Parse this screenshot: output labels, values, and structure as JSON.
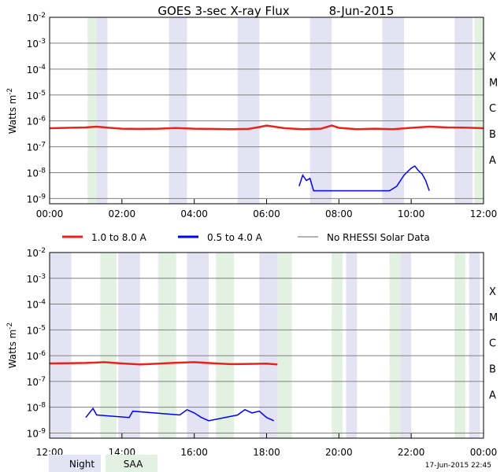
{
  "title": "GOES 3-sec X-ray Flux",
  "date": "8-Jun-2015",
  "ylabel": "Watts m",
  "ylabel_sup": "-2",
  "class_labels": [
    "A",
    "B",
    "C",
    "M",
    "X"
  ],
  "legend": {
    "long": "1.0 to 8.0 A",
    "short": "0.5 to 4.0 A",
    "nodata": "No RHESSI Solar Data"
  },
  "shading_legend": {
    "night": "Night",
    "saa": "SAA"
  },
  "timestamp": "17-Jun-2015 22:45",
  "colors": {
    "long": "#e8231c",
    "short": "#0000ff",
    "nodata": "#999999",
    "night": "#e3e3f3",
    "saa": "#e3f1e3"
  },
  "chart_data": [
    {
      "type": "line",
      "panel": "top",
      "x_unit": "hours UTC",
      "xlim": [
        0,
        12
      ],
      "x_ticks": [
        "00:00",
        "02:00",
        "04:00",
        "06:00",
        "08:00",
        "10:00",
        "12:00"
      ],
      "ylim_log10": [
        -9.2,
        -2
      ],
      "y_ticks": [
        "10-9",
        "10-8",
        "10-7",
        "10-6",
        "10-5",
        "10-4",
        "10-3",
        "10-2"
      ],
      "y_scale": "log",
      "night": [
        [
          1.3,
          1.6
        ],
        [
          3.3,
          3.8
        ],
        [
          5.2,
          5.8
        ],
        [
          7.2,
          7.8
        ],
        [
          9.2,
          9.8
        ],
        [
          11.2,
          11.7
        ]
      ],
      "saa": [
        [
          1.05,
          1.3
        ],
        [
          11.75,
          12.0
        ]
      ],
      "series": [
        {
          "name": "1.0 to 8.0 A",
          "key": "long",
          "x": [
            0,
            0.5,
            1.0,
            1.3,
            1.6,
            2.0,
            2.5,
            3.0,
            3.5,
            4.0,
            4.5,
            5.0,
            5.5,
            5.8,
            6.0,
            6.5,
            7.0,
            7.5,
            7.8,
            8.0,
            8.5,
            9.0,
            9.5,
            10.0,
            10.5,
            11.0,
            11.5,
            12.0
          ],
          "y": [
            5.2e-07,
            5.4e-07,
            5.6e-07,
            6e-07,
            5.5e-07,
            5e-07,
            4.9e-07,
            5e-07,
            5.3e-07,
            5e-07,
            4.9e-07,
            4.8e-07,
            4.9e-07,
            5.8e-07,
            6.6e-07,
            5.2e-07,
            4.8e-07,
            5e-07,
            6.6e-07,
            5.4e-07,
            4.8e-07,
            5e-07,
            4.8e-07,
            5.4e-07,
            6e-07,
            5.6e-07,
            5.5e-07,
            5.2e-07
          ]
        },
        {
          "name": "0.5 to 4.0 A",
          "key": "short",
          "x": [
            6.9,
            7.0,
            7.1,
            7.2,
            7.3,
            9.4,
            9.6,
            9.8,
            10.0,
            10.1,
            10.2,
            10.3,
            10.4,
            10.5
          ],
          "y": [
            3e-09,
            8e-09,
            5e-09,
            6e-09,
            2e-09,
            2e-09,
            3e-09,
            8e-09,
            1.5e-08,
            1.8e-08,
            1.2e-08,
            9e-09,
            5e-09,
            2e-09
          ]
        }
      ]
    },
    {
      "type": "line",
      "panel": "bottom",
      "x_unit": "hours UTC",
      "xlim": [
        12,
        24
      ],
      "x_ticks": [
        "12:00",
        "14:00",
        "16:00",
        "18:00",
        "20:00",
        "22:00",
        "00:00"
      ],
      "ylim_log10": [
        -9.2,
        -2
      ],
      "y_ticks": [
        "10-9",
        "10-8",
        "10-7",
        "10-6",
        "10-5",
        "10-4",
        "10-3",
        "10-2"
      ],
      "y_scale": "log",
      "night": [
        [
          12.0,
          12.6
        ],
        [
          13.9,
          14.5
        ],
        [
          15.8,
          16.4
        ],
        [
          17.8,
          18.3
        ],
        [
          20.2,
          20.5
        ],
        [
          21.7,
          22.0
        ],
        [
          23.6,
          23.9
        ]
      ],
      "saa": [
        [
          13.4,
          13.85
        ],
        [
          15.0,
          15.5
        ],
        [
          16.6,
          17.1
        ],
        [
          18.3,
          18.7
        ],
        [
          19.8,
          20.1
        ],
        [
          21.4,
          21.7
        ],
        [
          23.2,
          23.5
        ]
      ],
      "series": [
        {
          "name": "1.0 to 8.0 A",
          "key": "long",
          "x": [
            12.0,
            12.5,
            13.0,
            13.5,
            14.0,
            14.5,
            15.0,
            15.5,
            16.0,
            16.5,
            17.0,
            17.5,
            18.0,
            18.3
          ],
          "y": [
            5e-07,
            5.1e-07,
            5.2e-07,
            5.6e-07,
            5e-07,
            4.6e-07,
            4.9e-07,
            5.3e-07,
            5.6e-07,
            5.1e-07,
            4.7e-07,
            4.8e-07,
            4.9e-07,
            4.6e-07
          ]
        },
        {
          "name": "0.5 to 4.0 A",
          "key": "short",
          "x": [
            13.0,
            13.2,
            13.3,
            14.2,
            14.3,
            15.6,
            15.8,
            16.0,
            16.2,
            16.4,
            17.2,
            17.4,
            17.6,
            17.8,
            18.0,
            18.2
          ],
          "y": [
            4e-09,
            9e-09,
            5e-09,
            4e-09,
            7e-09,
            5e-09,
            8e-09,
            6e-09,
            4e-09,
            3e-09,
            5e-09,
            8e-09,
            6e-09,
            7e-09,
            4e-09,
            3e-09
          ]
        }
      ]
    }
  ]
}
